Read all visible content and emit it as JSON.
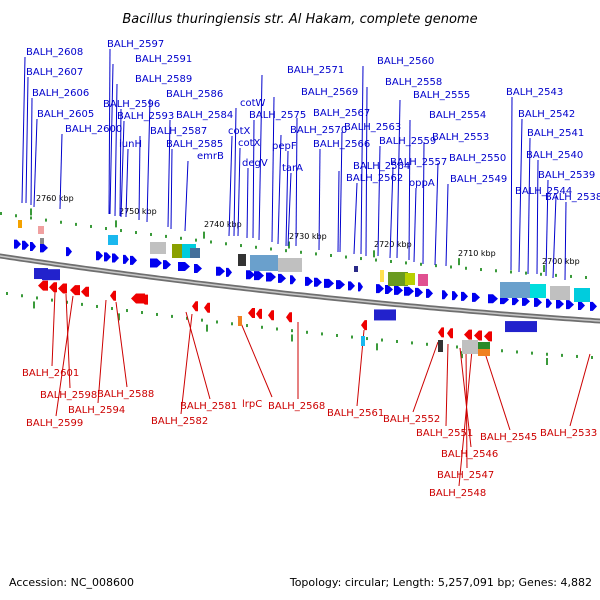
{
  "title": "Bacillus thuringiensis str. Al Hakam, complete genome",
  "footer": {
    "accession": "Accession: NC_008600",
    "summary": "Topology: circular; Length: 5,257,091 bp; Genes: 4,882"
  },
  "colors": {
    "forward_gene": "#0000ee",
    "reverse_gene": "#ee0000",
    "forward_label": "#0000cc",
    "reverse_label": "#cc0000",
    "marker": "#3a9a3a",
    "backbone": "#888888"
  },
  "scale_labels": [
    "2760 kbp",
    "2750 kbp",
    "2740 kbp",
    "2730 kbp",
    "2720 kbp",
    "2710 kbp",
    "2700 kbp"
  ],
  "top_genes": [
    "BALH_2608",
    "BALH_2607",
    "BALH_2606",
    "BALH_2605",
    "BALH_2600",
    "BALH_2597",
    "BALH_2591",
    "BALH_2589",
    "BALH_2596",
    "BALH_2593",
    "iunH",
    "BALH_2587",
    "BALH_2586",
    "BALH_2584",
    "BALH_2585",
    "emrB",
    "cotW",
    "BALH_2575",
    "cotX",
    "cotX",
    "degV",
    "BALH_2571",
    "BALH_2569",
    "BALH_2567",
    "BALH_2570",
    "pepF",
    "BALH_2566",
    "tarA",
    "BALH_2563",
    "BALH_2564",
    "BALH_2562",
    "BALH_2560",
    "BALH_2558",
    "BALH_2555",
    "BALH_2559",
    "BALH_2554",
    "BALH_2557",
    "oppA",
    "BALH_2553",
    "BALH_2550",
    "BALH_2549",
    "BALH_2543",
    "BALH_2542",
    "BALH_2541",
    "BALH_2540",
    "BALH_2544",
    "BALH_2539",
    "BALH_2538"
  ],
  "bottom_genes": [
    "BALH_2601",
    "BALH_2598",
    "BALH_2599",
    "BALH_2594",
    "BALH_2588",
    "BALH_2581",
    "BALH_2582",
    "lrpC",
    "BALH_2568",
    "BALH_2561",
    "BALH_2552",
    "BALH_2551",
    "BALH_2546",
    "BALH_2547",
    "BALH_2548",
    "BALH_2545",
    "BALH_2533"
  ]
}
